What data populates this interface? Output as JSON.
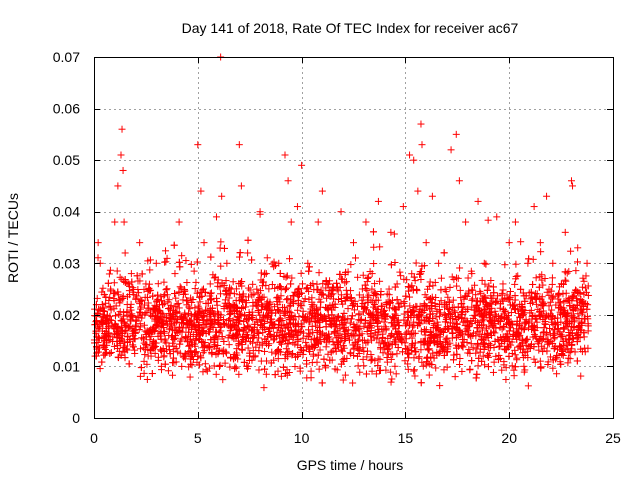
{
  "chart_data": {
    "type": "scatter",
    "title": "Day 141 of 2018, Rate Of TEC Index for receiver ac67",
    "xlabel": "GPS time / hours",
    "ylabel": "ROTI / TECUs",
    "xlim": [
      0,
      25
    ],
    "ylim": [
      0,
      0.07
    ],
    "xticks": [
      0,
      5,
      10,
      15,
      20,
      25
    ],
    "xtick_labels": [
      "0",
      "5",
      "10",
      "15",
      "20",
      "25"
    ],
    "yticks": [
      0,
      0.01,
      0.02,
      0.03,
      0.04,
      0.05,
      0.06,
      0.07
    ],
    "ytick_labels": [
      "0",
      "0.01",
      "0.02",
      "0.03",
      "0.04",
      "0.05",
      "0.06",
      "0.07"
    ],
    "grid": true,
    "marker": "+",
    "color": "#ff0000",
    "series": [
      {
        "name": "ROTI",
        "x": [
          0.05,
          0.2,
          0.3,
          0.45,
          0.6,
          0.8,
          1.0,
          1.15,
          1.3,
          1.35,
          1.4,
          1.45,
          1.5,
          1.6,
          1.8,
          2.0,
          2.2,
          2.5,
          2.8,
          3.0,
          3.3,
          3.6,
          3.9,
          4.1,
          4.4,
          4.7,
          5.0,
          5.15,
          5.3,
          5.6,
          5.9,
          6.1,
          6.15,
          6.4,
          6.7,
          7.0,
          7.1,
          7.4,
          7.7,
          8.0,
          8.3,
          8.6,
          8.9,
          9.2,
          9.35,
          9.5,
          9.8,
          10.0,
          10.3,
          10.5,
          10.8,
          11.0,
          11.3,
          11.6,
          11.9,
          12.2,
          12.5,
          12.8,
          13.1,
          13.4,
          13.7,
          14.0,
          14.3,
          14.6,
          14.9,
          15.2,
          15.4,
          15.6,
          15.75,
          15.8,
          16.0,
          16.3,
          16.6,
          16.9,
          17.2,
          17.45,
          17.6,
          17.9,
          18.2,
          18.5,
          18.8,
          19.1,
          19.4,
          19.7,
          20.0,
          20.3,
          20.6,
          20.9,
          21.2,
          21.5,
          21.8,
          22.1,
          22.4,
          22.7,
          23.0,
          23.05,
          23.3,
          23.6,
          23.75
        ],
        "y": [
          0.012,
          0.034,
          0.03,
          0.02,
          0.015,
          0.025,
          0.038,
          0.045,
          0.051,
          0.056,
          0.048,
          0.038,
          0.032,
          0.022,
          0.028,
          0.018,
          0.034,
          0.026,
          0.014,
          0.03,
          0.022,
          0.016,
          0.028,
          0.038,
          0.024,
          0.018,
          0.053,
          0.044,
          0.034,
          0.026,
          0.039,
          0.07,
          0.043,
          0.03,
          0.022,
          0.053,
          0.045,
          0.032,
          0.024,
          0.04,
          0.028,
          0.018,
          0.03,
          0.051,
          0.046,
          0.038,
          0.041,
          0.049,
          0.03,
          0.022,
          0.038,
          0.044,
          0.026,
          0.018,
          0.04,
          0.024,
          0.034,
          0.016,
          0.038,
          0.028,
          0.042,
          0.02,
          0.036,
          0.026,
          0.041,
          0.051,
          0.05,
          0.044,
          0.057,
          0.053,
          0.034,
          0.043,
          0.03,
          0.022,
          0.052,
          0.055,
          0.046,
          0.038,
          0.028,
          0.042,
          0.03,
          0.02,
          0.039,
          0.026,
          0.034,
          0.038,
          0.022,
          0.03,
          0.041,
          0.034,
          0.043,
          0.03,
          0.024,
          0.036,
          0.046,
          0.045,
          0.033,
          0.024,
          0.03
        ]
      }
    ]
  }
}
